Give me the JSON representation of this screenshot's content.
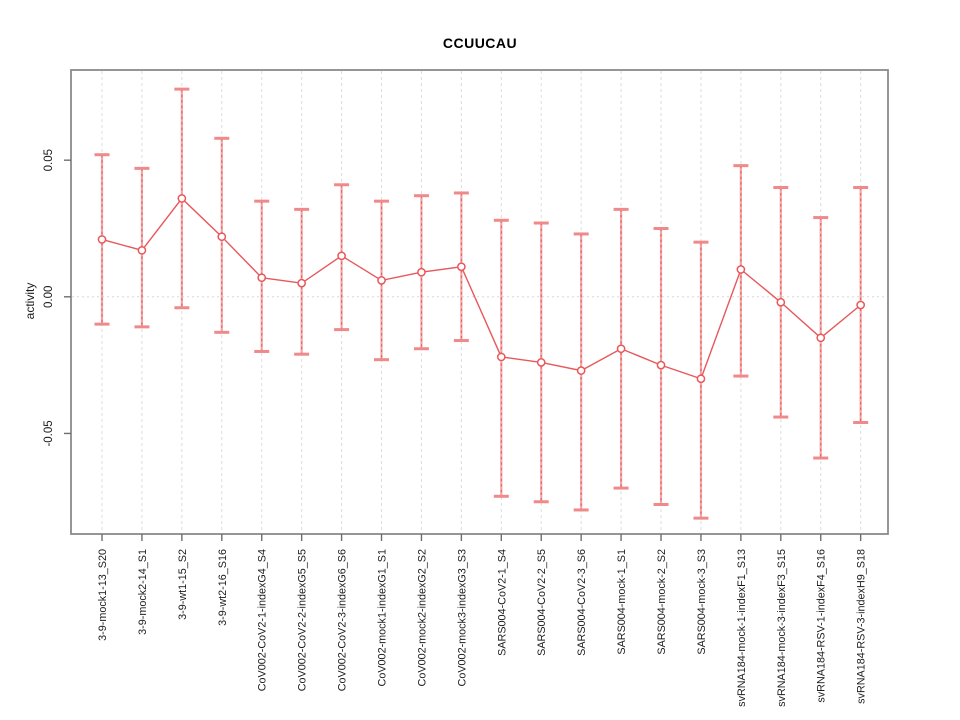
{
  "chart_data": {
    "type": "scatter",
    "title": "CCUUCAU",
    "xlabel": "",
    "ylabel": "activity",
    "legend_position": "none",
    "grid": "dashed vertical line at each category; dashed horizontal line at y=0",
    "ylim": [
      -0.0868,
      0.083
    ],
    "yticks": [
      0.05,
      0.0,
      -0.05
    ],
    "ytick_labels": [
      "0.05",
      "0.00",
      "-0.05"
    ],
    "categories": [
      "3-9-mock1-13_S20",
      "3-9-mock2-14_S1",
      "3-9-wt1-15_S2",
      "3-9-wt2-16_S16",
      "CoV002-CoV2-1-indexG4_S4",
      "CoV002-CoV2-2-indexG5_S5",
      "CoV002-CoV2-3-indexG6_S6",
      "CoV002-mock1-indexG1_S1",
      "CoV002-mock2-indexG2_S2",
      "CoV002-mock3-indexG3_S3",
      "SARS004-CoV2-1_S4",
      "SARS004-CoV2-2_S5",
      "SARS004-CoV2-3_S6",
      "SARS004-mock-1_S1",
      "SARS004-mock-2_S2",
      "SARS004-mock-3_S3",
      "svRNA184-mock-1-indexF1_S13",
      "svRNA184-mock-3-indexF3_S15",
      "svRNA184-RSV-1-indexF4_S16",
      "svRNA184-RSV-3-indexH9_S18"
    ],
    "series": [
      {
        "name": "activity",
        "values": [
          0.021,
          0.017,
          0.036,
          0.022,
          0.007,
          0.005,
          0.015,
          0.006,
          0.009,
          0.011,
          -0.022,
          -0.024,
          -0.027,
          -0.019,
          -0.025,
          -0.03,
          0.01,
          -0.002,
          -0.015,
          -0.003
        ],
        "upper": [
          0.052,
          0.047,
          0.076,
          0.058,
          0.035,
          0.032,
          0.041,
          0.035,
          0.037,
          0.038,
          0.028,
          0.027,
          0.023,
          0.032,
          0.025,
          0.02,
          0.048,
          0.04,
          0.029,
          0.04
        ],
        "lower": [
          -0.01,
          -0.011,
          -0.004,
          -0.013,
          -0.02,
          -0.021,
          -0.012,
          -0.023,
          -0.019,
          -0.016,
          -0.073,
          -0.075,
          -0.078,
          -0.07,
          -0.076,
          -0.081,
          -0.029,
          -0.044,
          -0.059,
          -0.046
        ]
      }
    ],
    "colors": {
      "point": "#e8575a",
      "line": "#e8575a",
      "error_bar_stem": "#f3a6a6",
      "error_bar_dash": "#e26060",
      "error_bar_cap": "#f08a8a",
      "gridline": "#dcdcdc",
      "zero_line": "#d8d8d8",
      "axis_border": "#8a8a8a",
      "tick": "#6e6e6e",
      "text": "#1c1c1c"
    }
  }
}
